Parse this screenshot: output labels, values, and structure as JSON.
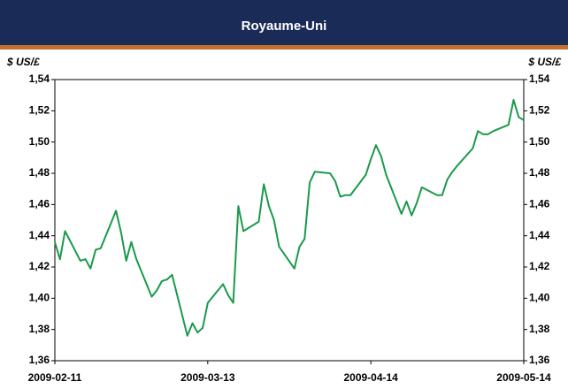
{
  "chart_data": {
    "type": "line",
    "title": "Royaume-Uni",
    "ylabel": "$ US/£",
    "x": [
      "2009-02-11",
      "2009-02-12",
      "2009-02-13",
      "2009-02-16",
      "2009-02-17",
      "2009-02-18",
      "2009-02-19",
      "2009-02-20",
      "2009-02-23",
      "2009-02-24",
      "2009-02-25",
      "2009-02-26",
      "2009-02-27",
      "2009-03-02",
      "2009-03-03",
      "2009-03-04",
      "2009-03-05",
      "2009-03-06",
      "2009-03-09",
      "2009-03-10",
      "2009-03-11",
      "2009-03-12",
      "2009-03-13",
      "2009-03-16",
      "2009-03-17",
      "2009-03-18",
      "2009-03-19",
      "2009-03-20",
      "2009-03-23",
      "2009-03-24",
      "2009-03-25",
      "2009-03-26",
      "2009-03-27",
      "2009-03-30",
      "2009-03-31",
      "2009-04-01",
      "2009-04-02",
      "2009-04-03",
      "2009-04-06",
      "2009-04-07",
      "2009-04-08",
      "2009-04-09",
      "2009-04-10",
      "2009-04-13",
      "2009-04-14",
      "2009-04-15",
      "2009-04-16",
      "2009-04-17",
      "2009-04-20",
      "2009-04-21",
      "2009-04-22",
      "2009-04-23",
      "2009-04-24",
      "2009-04-27",
      "2009-04-28",
      "2009-04-29",
      "2009-04-30",
      "2009-05-01",
      "2009-05-04",
      "2009-05-05",
      "2009-05-06",
      "2009-05-07",
      "2009-05-08",
      "2009-05-11",
      "2009-05-12",
      "2009-05-13",
      "2009-05-14"
    ],
    "series": [
      {
        "name": "Royaume-Uni",
        "color": "#1a9a4a",
        "values": [
          1.436,
          1.425,
          1.443,
          1.424,
          1.425,
          1.419,
          1.431,
          1.432,
          1.456,
          1.442,
          1.424,
          1.436,
          1.425,
          1.401,
          1.405,
          1.411,
          1.412,
          1.415,
          1.376,
          1.384,
          1.378,
          1.381,
          1.397,
          1.409,
          1.402,
          1.397,
          1.459,
          1.443,
          1.449,
          1.473,
          1.459,
          1.45,
          1.433,
          1.419,
          1.433,
          1.438,
          1.474,
          1.481,
          1.48,
          1.475,
          1.465,
          1.466,
          1.466,
          1.479,
          1.489,
          1.498,
          1.491,
          1.479,
          1.454,
          1.462,
          1.453,
          1.461,
          1.471,
          1.466,
          1.466,
          1.476,
          1.481,
          1.485,
          1.496,
          1.507,
          1.505,
          1.505,
          1.507,
          1.511,
          1.527,
          1.516,
          1.514
        ]
      }
    ],
    "xlim": [
      "2009-02-11",
      "2009-05-14"
    ],
    "xticks": [
      "2009-02-11",
      "2009-03-13",
      "2009-04-14",
      "2009-05-14"
    ],
    "ylim": [
      1.36,
      1.54
    ],
    "yticks": [
      {
        "value": 1.36,
        "label": "1,36"
      },
      {
        "value": 1.38,
        "label": "1,38"
      },
      {
        "value": 1.4,
        "label": "1,40"
      },
      {
        "value": 1.42,
        "label": "1,42"
      },
      {
        "value": 1.44,
        "label": "1,44"
      },
      {
        "value": 1.46,
        "label": "1,46"
      },
      {
        "value": 1.48,
        "label": "1,48"
      },
      {
        "value": 1.5,
        "label": "1,50"
      },
      {
        "value": 1.52,
        "label": "1,52"
      },
      {
        "value": 1.54,
        "label": "1,54"
      }
    ],
    "grid": false
  }
}
